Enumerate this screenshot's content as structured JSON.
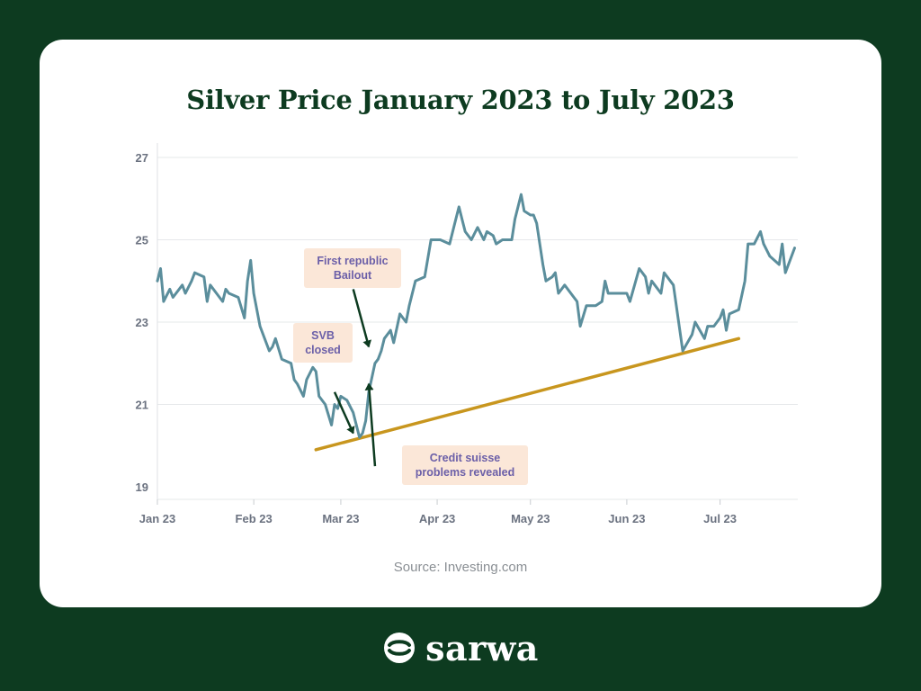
{
  "brand": {
    "name": "sarwa"
  },
  "source": "Source: Investing.com",
  "chart_data": {
    "type": "line",
    "title": "Silver Price January 2023 to July 2023",
    "ylim": [
      19,
      27
    ],
    "y_ticks": [
      19,
      21,
      23,
      25,
      27
    ],
    "x_ticks": [
      {
        "label": "Jan 23",
        "x": "2023-01-01"
      },
      {
        "label": "Feb 23",
        "x": "2023-02-01"
      },
      {
        "label": "Mar 23",
        "x": "2023-03-01"
      },
      {
        "label": "Apr 23",
        "x": "2023-04-01"
      },
      {
        "label": "May 23",
        "x": "2023-05-01"
      },
      {
        "label": "Jun 23",
        "x": "2023-06-01"
      },
      {
        "label": "Jul 23",
        "x": "2023-07-01"
      }
    ],
    "grid": true,
    "colors": {
      "line": "#5b8e9c",
      "trend": "#c8961e",
      "arrow": "#0d3b20"
    },
    "series": [
      {
        "values": [
          [
            "2023-01-01",
            24.0
          ],
          [
            "2023-01-02",
            24.3
          ],
          [
            "2023-01-03",
            23.5
          ],
          [
            "2023-01-05",
            23.8
          ],
          [
            "2023-01-06",
            23.6
          ],
          [
            "2023-01-09",
            23.9
          ],
          [
            "2023-01-10",
            23.7
          ],
          [
            "2023-01-12",
            24.0
          ],
          [
            "2023-01-13",
            24.2
          ],
          [
            "2023-01-16",
            24.1
          ],
          [
            "2023-01-17",
            23.5
          ],
          [
            "2023-01-18",
            23.9
          ],
          [
            "2023-01-20",
            23.7
          ],
          [
            "2023-01-22",
            23.5
          ],
          [
            "2023-01-23",
            23.8
          ],
          [
            "2023-01-24",
            23.7
          ],
          [
            "2023-01-27",
            23.6
          ],
          [
            "2023-01-29",
            23.1
          ],
          [
            "2023-01-30",
            24.0
          ],
          [
            "2023-01-31",
            24.5
          ],
          [
            "2023-02-01",
            23.7
          ],
          [
            "2023-02-03",
            22.9
          ],
          [
            "2023-02-06",
            22.3
          ],
          [
            "2023-02-07",
            22.4
          ],
          [
            "2023-02-08",
            22.6
          ],
          [
            "2023-02-10",
            22.1
          ],
          [
            "2023-02-13",
            22.0
          ],
          [
            "2023-02-14",
            21.6
          ],
          [
            "2023-02-15",
            21.5
          ],
          [
            "2023-02-17",
            21.2
          ],
          [
            "2023-02-18",
            21.6
          ],
          [
            "2023-02-20",
            21.9
          ],
          [
            "2023-02-21",
            21.8
          ],
          [
            "2023-02-22",
            21.2
          ],
          [
            "2023-02-24",
            21.0
          ],
          [
            "2023-02-26",
            20.5
          ],
          [
            "2023-02-27",
            21.0
          ],
          [
            "2023-02-28",
            20.9
          ],
          [
            "2023-03-01",
            21.2
          ],
          [
            "2023-03-03",
            21.1
          ],
          [
            "2023-03-05",
            20.8
          ],
          [
            "2023-03-07",
            20.2
          ],
          [
            "2023-03-08",
            20.3
          ],
          [
            "2023-03-09",
            20.6
          ],
          [
            "2023-03-10",
            21.3
          ],
          [
            "2023-03-12",
            22.0
          ],
          [
            "2023-03-13",
            22.1
          ],
          [
            "2023-03-14",
            22.3
          ],
          [
            "2023-03-15",
            22.6
          ],
          [
            "2023-03-17",
            22.8
          ],
          [
            "2023-03-18",
            22.5
          ],
          [
            "2023-03-20",
            23.2
          ],
          [
            "2023-03-22",
            23.0
          ],
          [
            "2023-03-23",
            23.4
          ],
          [
            "2023-03-25",
            24.0
          ],
          [
            "2023-03-28",
            24.1
          ],
          [
            "2023-03-30",
            25.0
          ],
          [
            "2023-04-02",
            25.0
          ],
          [
            "2023-04-05",
            24.9
          ],
          [
            "2023-04-07",
            25.5
          ],
          [
            "2023-04-08",
            25.8
          ],
          [
            "2023-04-09",
            25.5
          ],
          [
            "2023-04-10",
            25.2
          ],
          [
            "2023-04-12",
            25.0
          ],
          [
            "2023-04-14",
            25.3
          ],
          [
            "2023-04-16",
            25.0
          ],
          [
            "2023-04-17",
            25.2
          ],
          [
            "2023-04-19",
            25.1
          ],
          [
            "2023-04-20",
            24.9
          ],
          [
            "2023-04-22",
            25.0
          ],
          [
            "2023-04-25",
            25.0
          ],
          [
            "2023-04-26",
            25.5
          ],
          [
            "2023-04-28",
            26.1
          ],
          [
            "2023-04-29",
            25.7
          ],
          [
            "2023-05-01",
            25.6
          ],
          [
            "2023-05-02",
            25.6
          ],
          [
            "2023-05-03",
            25.4
          ],
          [
            "2023-05-05",
            24.4
          ],
          [
            "2023-05-06",
            24.0
          ],
          [
            "2023-05-08",
            24.1
          ],
          [
            "2023-05-09",
            24.2
          ],
          [
            "2023-05-10",
            23.7
          ],
          [
            "2023-05-12",
            23.9
          ],
          [
            "2023-05-14",
            23.7
          ],
          [
            "2023-05-16",
            23.5
          ],
          [
            "2023-05-17",
            22.9
          ],
          [
            "2023-05-19",
            23.4
          ],
          [
            "2023-05-22",
            23.4
          ],
          [
            "2023-05-24",
            23.5
          ],
          [
            "2023-05-25",
            24.0
          ],
          [
            "2023-05-26",
            23.7
          ],
          [
            "2023-05-29",
            23.7
          ],
          [
            "2023-06-01",
            23.7
          ],
          [
            "2023-06-02",
            23.5
          ],
          [
            "2023-06-05",
            24.3
          ],
          [
            "2023-06-07",
            24.1
          ],
          [
            "2023-06-08",
            23.7
          ],
          [
            "2023-06-09",
            24.0
          ],
          [
            "2023-06-12",
            23.7
          ],
          [
            "2023-06-13",
            24.2
          ],
          [
            "2023-06-15",
            24.0
          ],
          [
            "2023-06-16",
            23.9
          ],
          [
            "2023-06-19",
            22.3
          ],
          [
            "2023-06-22",
            22.7
          ],
          [
            "2023-06-23",
            23.0
          ],
          [
            "2023-06-26",
            22.6
          ],
          [
            "2023-06-27",
            22.9
          ],
          [
            "2023-06-29",
            22.9
          ],
          [
            "2023-07-01",
            23.1
          ],
          [
            "2023-07-02",
            23.3
          ],
          [
            "2023-07-03",
            22.8
          ],
          [
            "2023-07-04",
            23.2
          ],
          [
            "2023-07-07",
            23.3
          ],
          [
            "2023-07-09",
            24.0
          ],
          [
            "2023-07-10",
            24.9
          ],
          [
            "2023-07-12",
            24.9
          ],
          [
            "2023-07-14",
            25.2
          ],
          [
            "2023-07-15",
            24.9
          ],
          [
            "2023-07-17",
            24.6
          ],
          [
            "2023-07-20",
            24.4
          ],
          [
            "2023-07-21",
            24.9
          ],
          [
            "2023-07-22",
            24.2
          ],
          [
            "2023-07-25",
            24.8
          ]
        ]
      }
    ],
    "trendline": [
      [
        "2023-02-21",
        19.9
      ],
      [
        "2023-07-07",
        22.6
      ]
    ],
    "annotations": [
      {
        "text": "SVB\nclosed",
        "arrow_from": [
          "2023-02-27",
          21.3
        ],
        "arrow_to": [
          "2023-03-05",
          20.3
        ]
      },
      {
        "text": "First republic\nBailout",
        "arrow_from": [
          "2023-03-05",
          23.8
        ],
        "arrow_to": [
          "2023-03-10",
          22.4
        ]
      },
      {
        "text": "Credit suisse\nproblems revealed",
        "arrow_from": [
          "2023-03-12",
          19.5
        ],
        "arrow_to": [
          "2023-03-10",
          21.5
        ]
      }
    ]
  }
}
